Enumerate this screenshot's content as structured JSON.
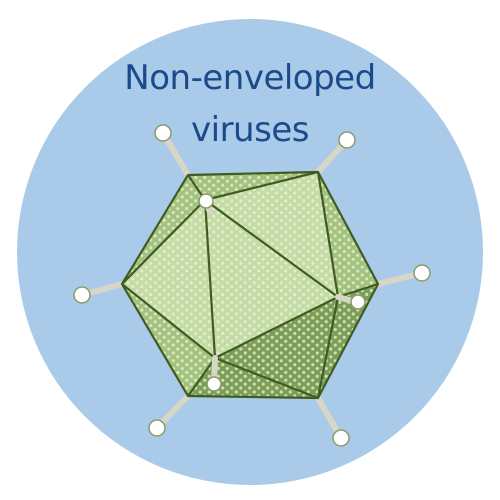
{
  "title": {
    "line1": "Non-enveloped",
    "line2": "viruses"
  },
  "colors": {
    "background_circle": "#a9cbe9",
    "title_text": "#1a4a8a",
    "capsid_light": "#c4dba6",
    "capsid_mid": "#a3c27f",
    "capsid_dark": "#7c9e57",
    "edge": "#3f5c22",
    "spike_stem": "#d8d6c6",
    "spike_knob": "#ffffff"
  },
  "icons": {
    "virus": "icosahedral-capsid-icon",
    "spike": "fiber-spike-icon"
  }
}
